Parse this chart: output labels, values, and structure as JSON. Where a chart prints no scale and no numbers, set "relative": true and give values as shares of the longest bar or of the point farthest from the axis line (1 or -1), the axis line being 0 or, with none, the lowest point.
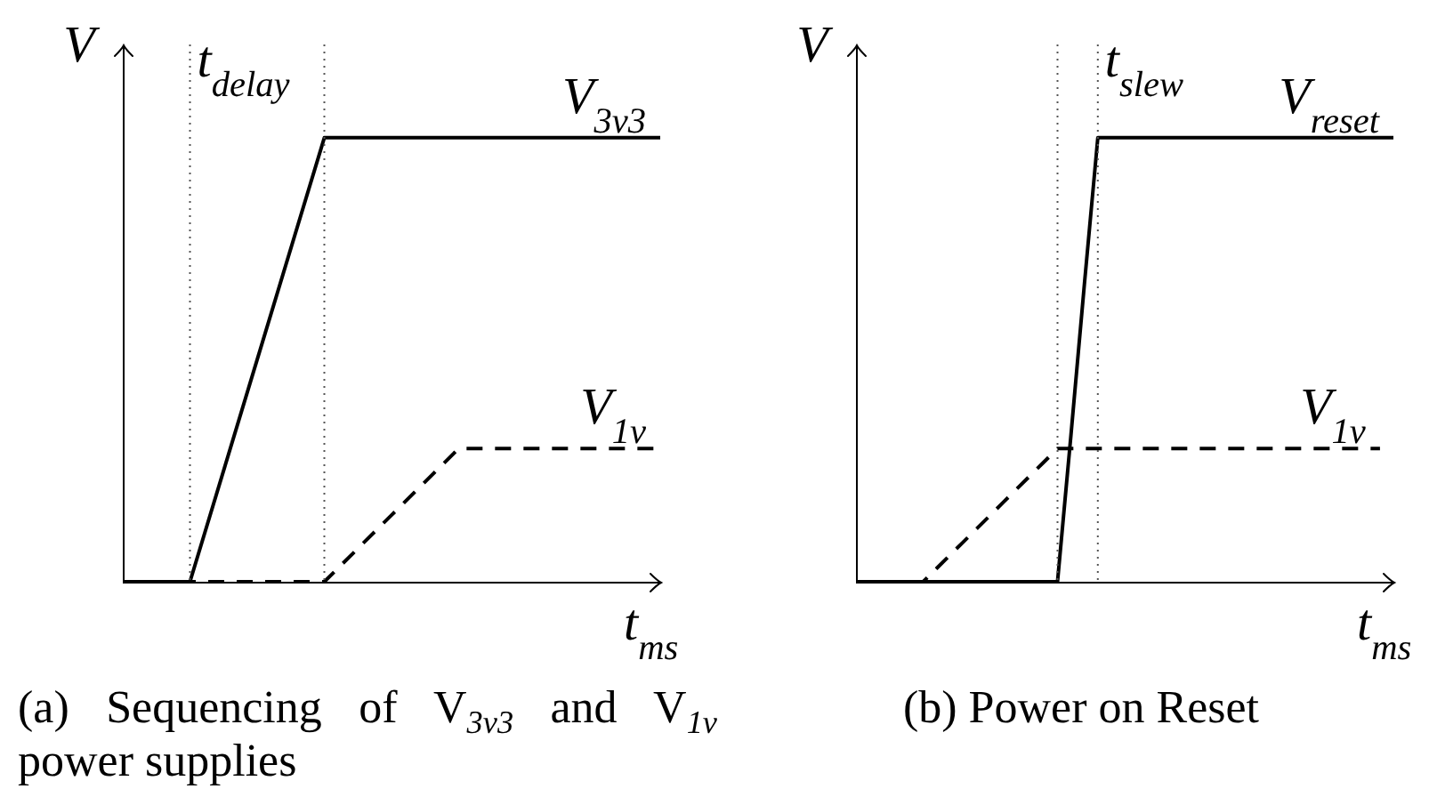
{
  "chart_data": [
    {
      "type": "line",
      "xlabel": "t$_{ms}$",
      "ylabel": "V",
      "relative": true,
      "categories": [
        null,
        null,
        null,
        null,
        null,
        null,
        null,
        null,
        null
      ],
      "series": [
        {
          "name": "V$_{3v3}$",
          "color": "#000000",
          "line_style": "solid",
          "values": [
            0,
            0,
            0.5,
            1,
            1,
            1,
            1,
            1,
            1
          ]
        },
        {
          "name": "V$_{1v}$",
          "color": "#000000",
          "line_style": "dashed",
          "values": [
            0,
            0,
            0,
            0,
            0.15,
            0.3,
            0.3,
            0.3,
            0.3
          ]
        }
      ],
      "annotations": [
        "t$_{delay}$",
        "(a) Sequencing of V$_{3v3}$ and V$_{1v}$ power supplies"
      ]
    },
    {
      "type": "line",
      "xlabel": "t$_{ms}$",
      "ylabel": "V",
      "relative": true,
      "categories": [
        null,
        null,
        null,
        null,
        null,
        null,
        null,
        null,
        null,
        null,
        null,
        null,
        null,
        null,
        null,
        null,
        null,
        null,
        null,
        null,
        null,
        null,
        null,
        null,
        null,
        null,
        null,
        null,
        null,
        null,
        null,
        null,
        null,
        null,
        null,
        null,
        null,
        null,
        null,
        null,
        null
      ],
      "series": [
        {
          "name": "V$_{reset}$",
          "color": "#000000",
          "line_style": "solid",
          "values": [
            0,
            0,
            0,
            0,
            0,
            0,
            0,
            0,
            0,
            0,
            0,
            0,
            0,
            0,
            0,
            0,
            0.33,
            0.67,
            1,
            1,
            1,
            1,
            1,
            1,
            1,
            1,
            1,
            1,
            1,
            1,
            1,
            1,
            1,
            1,
            1,
            1,
            1,
            1,
            1,
            1,
            1
          ]
        },
        {
          "name": "V$_{1v}$",
          "color": "#000000",
          "line_style": "dashed",
          "values": [
            0,
            0,
            0,
            0,
            0,
            0,
            0.03,
            0.06,
            0.09,
            0.12,
            0.15,
            0.18,
            0.21,
            0.24,
            0.27,
            0.3,
            0.3,
            0.3,
            0.3,
            0.3,
            0.3,
            0.3,
            0.3,
            0.3,
            0.3,
            0.3,
            0.3,
            0.3,
            0.3,
            0.3,
            0.3,
            0.3,
            0.3,
            0.3,
            0.3,
            0.3,
            0.3,
            0.3,
            0.3,
            0.3,
            null
          ]
        }
      ],
      "annotations": [
        "t$_{slew}$",
        "(b) Power on Reset"
      ]
    }
  ]
}
